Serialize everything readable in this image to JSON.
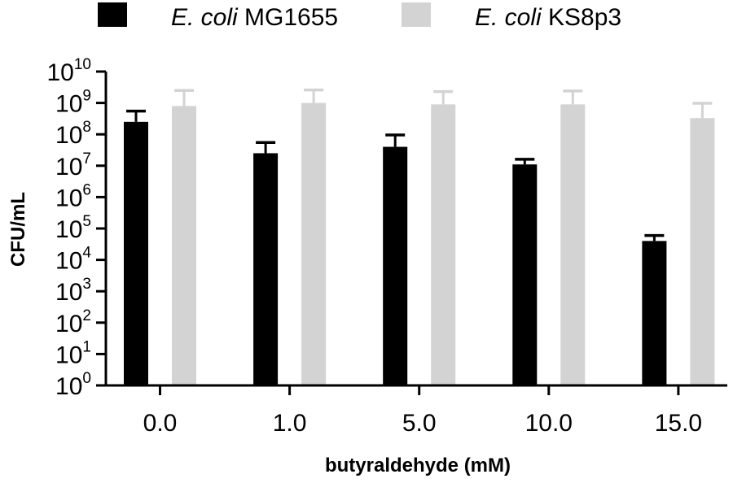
{
  "chart_data": {
    "type": "bar",
    "categories": [
      "0.0",
      "1.0",
      "5.0",
      "10.0",
      "15.0"
    ],
    "series": [
      {
        "name_italic": "E. coli",
        "name_rest": "MG1655",
        "color": "#000000",
        "values": [
          250000000,
          25000000,
          40000000,
          11000000,
          40000
        ],
        "errors": [
          300000000,
          30000000,
          55000000,
          5000000,
          20000
        ]
      },
      {
        "name_italic": "E. coli",
        "name_rest": "KS8p3",
        "color": "#d3d3d3",
        "values": [
          800000000,
          1000000000,
          900000000,
          900000000,
          330000000
        ],
        "errors": [
          1700000000,
          1600000000,
          1400000000,
          1500000000,
          650000000
        ]
      }
    ],
    "xlabel": "butyraldehyde (mM)",
    "ylabel": "CFU/mL",
    "yscale": "log",
    "ylim": [
      1,
      10000000000
    ],
    "yticks": [
      {
        "base": "10",
        "exp": "0"
      },
      {
        "base": "10",
        "exp": "1"
      },
      {
        "base": "10",
        "exp": "2"
      },
      {
        "base": "10",
        "exp": "3"
      },
      {
        "base": "10",
        "exp": "4"
      },
      {
        "base": "10",
        "exp": "5"
      },
      {
        "base": "10",
        "exp": "6"
      },
      {
        "base": "10",
        "exp": "7"
      },
      {
        "base": "10",
        "exp": "8"
      },
      {
        "base": "10",
        "exp": "9"
      },
      {
        "base": "10",
        "exp": "10"
      }
    ],
    "grid": false,
    "legend_position": "top"
  }
}
